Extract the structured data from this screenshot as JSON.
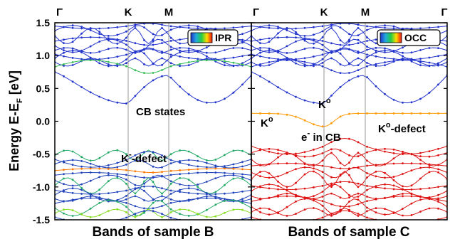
{
  "chart_data": [
    {
      "type": "line",
      "xlabel": "Bands of sample B",
      "ylabel": "Energy E-E_F [eV]",
      "ylim": [
        -1.5,
        1.5
      ],
      "yticks": [
        "-1.5",
        "-1.0",
        "-0.5",
        "0.0",
        "0.5",
        "1.0",
        "1.5"
      ],
      "high_symmetry_points": [
        "Γ",
        "K",
        "M",
        "Γ"
      ],
      "legend": "IPR",
      "annotations": [
        "CB states",
        "K",
        "-",
        "-defect"
      ],
      "colors": {
        "ipr_low": "#2233cc",
        "ipr_mid": "#22aa66",
        "ipr_high": "#ff6600"
      },
      "series_energies": [
        1.45,
        1.38,
        1.3,
        1.22,
        1.15,
        1.08,
        1.02,
        0.96,
        0.9,
        0.83,
        0.7,
        -0.52,
        -0.58,
        -0.65,
        -0.75,
        -0.82,
        -0.9,
        -0.98,
        -1.05,
        -1.12,
        -1.18,
        -1.25,
        -1.32,
        -1.4,
        -1.46
      ]
    },
    {
      "type": "line",
      "xlabel": "Bands of sample C",
      "ylim": [
        -1.5,
        1.5
      ],
      "high_symmetry_points": [
        "Γ",
        "K",
        "M",
        "Γ"
      ],
      "legend": "OCC",
      "annotations": [
        "K",
        "o",
        "K",
        "o",
        "e",
        "-",
        " in CB",
        "K",
        "o",
        "-defect"
      ],
      "colors": {
        "occ_empty": "#2233cc",
        "occ_half": "#ffaa00",
        "occ_full": "#dd1111"
      },
      "series_energies": [
        1.45,
        1.38,
        1.3,
        1.22,
        1.15,
        1.08,
        1.02,
        0.96,
        0.9,
        0.83,
        0.7,
        0.12,
        -0.38,
        -0.48,
        -0.58,
        -0.68,
        -0.78,
        -0.88,
        -0.98,
        -1.06,
        -1.14,
        -1.22,
        -1.3,
        -1.38,
        -1.46
      ]
    }
  ]
}
